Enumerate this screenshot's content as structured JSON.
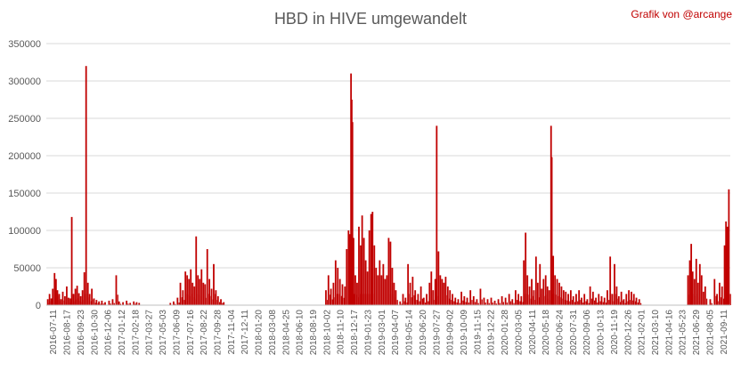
{
  "chart_data": {
    "type": "bar",
    "title": "HBD in HIVE umgewandelt",
    "watermark": "Grafik von @arcange",
    "series_color": "#c00000",
    "xlabel": "",
    "ylabel": "",
    "ylim": [
      0,
      350000
    ],
    "y_ticks": [
      0,
      50000,
      100000,
      150000,
      200000,
      250000,
      300000,
      350000
    ],
    "grid": true,
    "legend": "none",
    "x_start": "2016-07-11",
    "x_end": "2021-10-01",
    "x_tick_labels": [
      "2016-07-11",
      "2016-08-17",
      "2016-09-23",
      "2016-10-30",
      "2016-12-06",
      "2017-01-12",
      "2017-02-18",
      "2017-03-27",
      "2017-05-03",
      "2017-06-09",
      "2017-07-16",
      "2017-08-22",
      "2017-09-28",
      "2017-11-04",
      "2017-12-11",
      "2018-01-20",
      "2018-03-08",
      "2018-04-25",
      "2018-06-10",
      "2018-08-19",
      "2018-10-02",
      "2018-11-10",
      "2018-12-17",
      "2019-01-23",
      "2019-03-01",
      "2019-04-07",
      "2019-05-14",
      "2019-06-20",
      "2019-07-27",
      "2019-09-02",
      "2019-10-09",
      "2019-11-15",
      "2019-12-22",
      "2020-01-28",
      "2020-03-05",
      "2020-04-11",
      "2020-05-18",
      "2020-06-24",
      "2020-07-31",
      "2020-09-06",
      "2020-10-13",
      "2020-11-19",
      "2020-12-26",
      "2021-02-01",
      "2021-03-10",
      "2021-04-16",
      "2021-05-23",
      "2021-06-29",
      "2021-08-05",
      "2021-09-11"
    ],
    "values": [
      [
        "2016-07-15",
        8000
      ],
      [
        "2016-07-20",
        15000
      ],
      [
        "2016-07-25",
        9000
      ],
      [
        "2016-07-29",
        22000
      ],
      [
        "2016-08-03",
        43000
      ],
      [
        "2016-08-07",
        35000
      ],
      [
        "2016-08-11",
        20000
      ],
      [
        "2016-08-16",
        15000
      ],
      [
        "2016-08-21",
        8000
      ],
      [
        "2016-08-26",
        18000
      ],
      [
        "2016-09-01",
        12000
      ],
      [
        "2016-09-06",
        25000
      ],
      [
        "2016-09-11",
        10000
      ],
      [
        "2016-09-16",
        9000
      ],
      [
        "2016-09-20",
        118000
      ],
      [
        "2016-09-25",
        15000
      ],
      [
        "2016-09-30",
        22000
      ],
      [
        "2016-10-05",
        26000
      ],
      [
        "2016-10-10",
        16000
      ],
      [
        "2016-10-15",
        12000
      ],
      [
        "2016-10-20",
        20000
      ],
      [
        "2016-10-25",
        44000
      ],
      [
        "2016-10-30",
        320000
      ],
      [
        "2016-11-04",
        30000
      ],
      [
        "2016-11-09",
        15000
      ],
      [
        "2016-11-15",
        22000
      ],
      [
        "2016-11-21",
        9000
      ],
      [
        "2016-11-28",
        7000
      ],
      [
        "2016-12-05",
        5000
      ],
      [
        "2016-12-13",
        6000
      ],
      [
        "2016-12-22",
        4000
      ],
      [
        "2017-01-02",
        6000
      ],
      [
        "2017-01-12",
        8000
      ],
      [
        "2017-01-22",
        40000
      ],
      [
        "2017-01-30",
        5000
      ],
      [
        "2017-02-10",
        4000
      ],
      [
        "2017-02-20",
        6000
      ],
      [
        "2017-03-02",
        3000
      ],
      [
        "2017-03-12",
        5000
      ],
      [
        "2017-03-20",
        4000
      ],
      [
        "2017-03-27",
        3000
      ],
      [
        "2017-06-22",
        3000
      ],
      [
        "2017-07-01",
        5000
      ],
      [
        "2017-07-12",
        10000
      ],
      [
        "2017-07-20",
        30000
      ],
      [
        "2017-07-27",
        20000
      ],
      [
        "2017-08-03",
        45000
      ],
      [
        "2017-08-08",
        40000
      ],
      [
        "2017-08-13",
        35000
      ],
      [
        "2017-08-18",
        48000
      ],
      [
        "2017-08-23",
        30000
      ],
      [
        "2017-08-28",
        25000
      ],
      [
        "2017-09-02",
        92000
      ],
      [
        "2017-09-07",
        40000
      ],
      [
        "2017-09-12",
        35000
      ],
      [
        "2017-09-17",
        48000
      ],
      [
        "2017-09-22",
        30000
      ],
      [
        "2017-09-27",
        28000
      ],
      [
        "2017-10-03",
        75000
      ],
      [
        "2017-10-09",
        35000
      ],
      [
        "2017-10-15",
        22000
      ],
      [
        "2017-10-21",
        55000
      ],
      [
        "2017-10-27",
        20000
      ],
      [
        "2017-11-02",
        12000
      ],
      [
        "2017-11-10",
        8000
      ],
      [
        "2017-11-18",
        4000
      ],
      [
        "2018-08-30",
        20000
      ],
      [
        "2018-09-06",
        40000
      ],
      [
        "2018-09-13",
        22000
      ],
      [
        "2018-09-20",
        30000
      ],
      [
        "2018-09-26",
        60000
      ],
      [
        "2018-10-02",
        50000
      ],
      [
        "2018-10-08",
        35000
      ],
      [
        "2018-10-15",
        28000
      ],
      [
        "2018-10-22",
        25000
      ],
      [
        "2018-10-27",
        75000
      ],
      [
        "2018-11-01",
        100000
      ],
      [
        "2018-11-05",
        95000
      ],
      [
        "2018-11-08",
        310000
      ],
      [
        "2018-11-10",
        275000
      ],
      [
        "2018-11-12",
        245000
      ],
      [
        "2018-11-15",
        90000
      ],
      [
        "2018-11-20",
        40000
      ],
      [
        "2018-11-25",
        30000
      ],
      [
        "2018-11-30",
        105000
      ],
      [
        "2018-12-05",
        80000
      ],
      [
        "2018-12-09",
        120000
      ],
      [
        "2018-12-14",
        90000
      ],
      [
        "2018-12-19",
        60000
      ],
      [
        "2018-12-24",
        45000
      ],
      [
        "2018-12-29",
        100000
      ],
      [
        "2019-01-03",
        122000
      ],
      [
        "2019-01-07",
        125000
      ],
      [
        "2019-01-12",
        80000
      ],
      [
        "2019-01-17",
        50000
      ],
      [
        "2019-01-22",
        40000
      ],
      [
        "2019-01-27",
        60000
      ],
      [
        "2019-02-01",
        40000
      ],
      [
        "2019-02-06",
        55000
      ],
      [
        "2019-02-11",
        35000
      ],
      [
        "2019-02-16",
        40000
      ],
      [
        "2019-02-21",
        90000
      ],
      [
        "2019-02-26",
        85000
      ],
      [
        "2019-03-03",
        50000
      ],
      [
        "2019-03-08",
        30000
      ],
      [
        "2019-03-13",
        20000
      ],
      [
        "2019-03-25",
        5000
      ],
      [
        "2019-04-02",
        15000
      ],
      [
        "2019-04-09",
        10000
      ],
      [
        "2019-04-16",
        55000
      ],
      [
        "2019-04-22",
        30000
      ],
      [
        "2019-04-29",
        38000
      ],
      [
        "2019-05-06",
        20000
      ],
      [
        "2019-05-14",
        15000
      ],
      [
        "2019-05-22",
        25000
      ],
      [
        "2019-05-30",
        10000
      ],
      [
        "2019-06-07",
        15000
      ],
      [
        "2019-06-15",
        30000
      ],
      [
        "2019-06-20",
        45000
      ],
      [
        "2019-06-25",
        20000
      ],
      [
        "2019-07-01",
        35000
      ],
      [
        "2019-07-05",
        240000
      ],
      [
        "2019-07-10",
        72000
      ],
      [
        "2019-07-15",
        40000
      ],
      [
        "2019-07-20",
        35000
      ],
      [
        "2019-07-25",
        30000
      ],
      [
        "2019-07-30",
        38000
      ],
      [
        "2019-08-05",
        25000
      ],
      [
        "2019-08-11",
        20000
      ],
      [
        "2019-08-18",
        15000
      ],
      [
        "2019-08-26",
        10000
      ],
      [
        "2019-09-03",
        8000
      ],
      [
        "2019-09-12",
        18000
      ],
      [
        "2019-09-20",
        12000
      ],
      [
        "2019-09-28",
        10000
      ],
      [
        "2019-10-07",
        20000
      ],
      [
        "2019-10-16",
        12000
      ],
      [
        "2019-10-25",
        8000
      ],
      [
        "2019-11-04",
        22000
      ],
      [
        "2019-11-14",
        10000
      ],
      [
        "2019-11-24",
        8000
      ],
      [
        "2019-12-04",
        10000
      ],
      [
        "2019-12-14",
        6000
      ],
      [
        "2019-12-24",
        8000
      ],
      [
        "2020-01-03",
        12000
      ],
      [
        "2020-01-13",
        10000
      ],
      [
        "2020-01-23",
        15000
      ],
      [
        "2020-02-01",
        8000
      ],
      [
        "2020-02-10",
        20000
      ],
      [
        "2020-02-18",
        15000
      ],
      [
        "2020-02-26",
        12000
      ],
      [
        "2020-03-04",
        60000
      ],
      [
        "2020-03-09",
        97000
      ],
      [
        "2020-03-14",
        40000
      ],
      [
        "2020-03-20",
        25000
      ],
      [
        "2020-03-26",
        35000
      ],
      [
        "2020-04-01",
        20000
      ],
      [
        "2020-04-07",
        65000
      ],
      [
        "2020-04-12",
        30000
      ],
      [
        "2020-04-18",
        55000
      ],
      [
        "2020-04-23",
        22000
      ],
      [
        "2020-04-28",
        35000
      ],
      [
        "2020-05-04",
        40000
      ],
      [
        "2020-05-09",
        25000
      ],
      [
        "2020-05-14",
        20000
      ],
      [
        "2020-05-19",
        240000
      ],
      [
        "2020-05-21",
        198000
      ],
      [
        "2020-05-25",
        66000
      ],
      [
        "2020-05-30",
        40000
      ],
      [
        "2020-06-05",
        35000
      ],
      [
        "2020-06-11",
        30000
      ],
      [
        "2020-06-17",
        25000
      ],
      [
        "2020-06-23",
        20000
      ],
      [
        "2020-06-29",
        18000
      ],
      [
        "2020-07-06",
        15000
      ],
      [
        "2020-07-13",
        20000
      ],
      [
        "2020-07-20",
        12000
      ],
      [
        "2020-07-28",
        15000
      ],
      [
        "2020-08-05",
        20000
      ],
      [
        "2020-08-12",
        10000
      ],
      [
        "2020-08-20",
        15000
      ],
      [
        "2020-08-28",
        8000
      ],
      [
        "2020-09-05",
        25000
      ],
      [
        "2020-09-13",
        18000
      ],
      [
        "2020-09-21",
        10000
      ],
      [
        "2020-09-29",
        15000
      ],
      [
        "2020-10-07",
        12000
      ],
      [
        "2020-10-15",
        10000
      ],
      [
        "2020-10-23",
        20000
      ],
      [
        "2020-10-31",
        65000
      ],
      [
        "2020-11-06",
        15000
      ],
      [
        "2020-11-12",
        55000
      ],
      [
        "2020-11-18",
        25000
      ],
      [
        "2020-11-24",
        12000
      ],
      [
        "2020-12-01",
        18000
      ],
      [
        "2020-12-08",
        8000
      ],
      [
        "2020-12-15",
        15000
      ],
      [
        "2020-12-22",
        20000
      ],
      [
        "2020-12-29",
        18000
      ],
      [
        "2021-01-05",
        15000
      ],
      [
        "2021-01-12",
        10000
      ],
      [
        "2021-01-20",
        8000
      ],
      [
        "2021-06-05",
        40000
      ],
      [
        "2021-06-10",
        60000
      ],
      [
        "2021-06-14",
        82000
      ],
      [
        "2021-06-18",
        45000
      ],
      [
        "2021-06-23",
        35000
      ],
      [
        "2021-06-28",
        62000
      ],
      [
        "2021-07-03",
        30000
      ],
      [
        "2021-07-08",
        55000
      ],
      [
        "2021-07-13",
        40000
      ],
      [
        "2021-07-18",
        18000
      ],
      [
        "2021-07-23",
        25000
      ],
      [
        "2021-08-06",
        8000
      ],
      [
        "2021-08-18",
        35000
      ],
      [
        "2021-08-25",
        15000
      ],
      [
        "2021-09-01",
        30000
      ],
      [
        "2021-09-08",
        25000
      ],
      [
        "2021-09-15",
        80000
      ],
      [
        "2021-09-19",
        112000
      ],
      [
        "2021-09-23",
        105000
      ],
      [
        "2021-09-27",
        155000
      ]
    ]
  }
}
